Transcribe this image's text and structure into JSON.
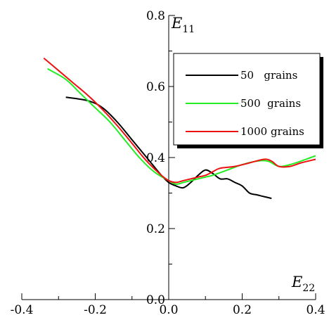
{
  "chart_data": {
    "type": "line",
    "title": "",
    "xlabel": "E",
    "xlabel_sub": "22",
    "ylabel": "E",
    "ylabel_sub": "11",
    "xlim": [
      -0.4,
      0.4
    ],
    "ylim": [
      0.0,
      0.8
    ],
    "x_ticks": [
      -0.4,
      -0.2,
      0.0,
      0.2,
      0.4
    ],
    "y_ticks": [
      0.0,
      0.2,
      0.4,
      0.6,
      0.8
    ],
    "x_tick_labels": [
      "-0.4",
      "-0.2",
      "0.0",
      "0.2",
      "0.4"
    ],
    "y_tick_labels": [
      "0.0",
      "0.2",
      "0.4",
      "0.6",
      "0.8"
    ],
    "legend_position": "top-right",
    "grid": false,
    "series": [
      {
        "name": "50   grains",
        "color": "#000000",
        "x": [
          -0.28,
          -0.22,
          -0.18,
          -0.14,
          -0.1,
          -0.06,
          -0.02,
          0.0,
          0.02,
          0.04,
          0.06,
          0.08,
          0.1,
          0.12,
          0.14,
          0.16,
          0.18,
          0.2,
          0.22,
          0.24,
          0.26,
          0.28
        ],
        "y": [
          0.57,
          0.56,
          0.54,
          0.5,
          0.45,
          0.4,
          0.35,
          0.33,
          0.32,
          0.315,
          0.33,
          0.35,
          0.365,
          0.355,
          0.34,
          0.34,
          0.33,
          0.32,
          0.3,
          0.295,
          0.29,
          0.285
        ]
      },
      {
        "name": "500  grains",
        "color": "#22ee22",
        "x": [
          -0.33,
          -0.28,
          -0.24,
          -0.2,
          -0.16,
          -0.12,
          -0.08,
          -0.04,
          0.0,
          0.02,
          0.04,
          0.06,
          0.08,
          0.1,
          0.12,
          0.16,
          0.2,
          0.24,
          0.27,
          0.3,
          0.33,
          0.36,
          0.4
        ],
        "y": [
          0.65,
          0.62,
          0.58,
          0.54,
          0.5,
          0.45,
          0.4,
          0.36,
          0.335,
          0.325,
          0.33,
          0.335,
          0.34,
          0.345,
          0.35,
          0.365,
          0.38,
          0.39,
          0.39,
          0.375,
          0.38,
          0.39,
          0.405
        ]
      },
      {
        "name": "1000 grains",
        "color": "#ee1111",
        "x": [
          -0.34,
          -0.3,
          -0.26,
          -0.22,
          -0.18,
          -0.14,
          -0.1,
          -0.06,
          -0.02,
          0.0,
          0.02,
          0.04,
          0.06,
          0.08,
          0.1,
          0.12,
          0.14,
          0.18,
          0.22,
          0.26,
          0.28,
          0.3,
          0.33,
          0.36,
          0.4
        ],
        "y": [
          0.68,
          0.645,
          0.61,
          0.575,
          0.535,
          0.49,
          0.44,
          0.39,
          0.35,
          0.335,
          0.33,
          0.335,
          0.34,
          0.345,
          0.35,
          0.36,
          0.37,
          0.375,
          0.385,
          0.395,
          0.39,
          0.375,
          0.375,
          0.385,
          0.395
        ]
      }
    ]
  }
}
